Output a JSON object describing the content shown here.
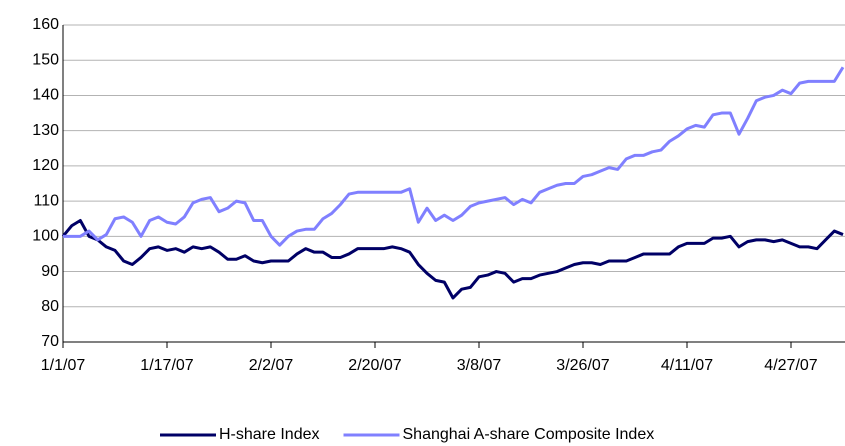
{
  "chart_data": {
    "type": "line",
    "categories": [
      "1/1/07",
      null,
      null,
      null,
      null,
      null,
      null,
      null,
      null,
      null,
      null,
      null,
      "1/17/07",
      null,
      null,
      null,
      null,
      null,
      null,
      null,
      null,
      null,
      null,
      null,
      "2/2/07",
      null,
      null,
      null,
      null,
      null,
      null,
      null,
      null,
      null,
      null,
      null,
      "2/20/07",
      null,
      null,
      null,
      null,
      null,
      null,
      null,
      null,
      null,
      null,
      null,
      "3/8/07",
      null,
      null,
      null,
      null,
      null,
      null,
      null,
      null,
      null,
      null,
      null,
      "3/26/07",
      null,
      null,
      null,
      null,
      null,
      null,
      null,
      null,
      null,
      null,
      null,
      "4/11/07",
      null,
      null,
      null,
      null,
      null,
      null,
      null,
      null,
      null,
      null,
      null,
      "4/27/07",
      null,
      null,
      null,
      null,
      null,
      null
    ],
    "series": [
      {
        "name": "H-share Index",
        "color": "#000066",
        "values": [
          100,
          103,
          104.5,
          100,
          99,
          97,
          96,
          93,
          92,
          94,
          96.5,
          97,
          96,
          96.5,
          95.5,
          97,
          96.5,
          97,
          95.5,
          93.5,
          93.5,
          94.5,
          93,
          92.5,
          93,
          93,
          93,
          95,
          96.5,
          95.5,
          95.5,
          94,
          94,
          95,
          96.5,
          96.5,
          96.5,
          96.5,
          97,
          96.5,
          95.5,
          92,
          89.5,
          87.5,
          87,
          82.5,
          85,
          85.5,
          88.5,
          89,
          90,
          89.5,
          87,
          88,
          88,
          89,
          89.5,
          90,
          91,
          92,
          92.5,
          92.5,
          92,
          93,
          93,
          93,
          94,
          95,
          95,
          95,
          95,
          97,
          98,
          98,
          98,
          99.5,
          99.5,
          100,
          97,
          98.5,
          99,
          99,
          98.5,
          99,
          98,
          97,
          97,
          96.5,
          99,
          101.5,
          100.5
        ]
      },
      {
        "name": "Shanghai A-share Composite Index",
        "color": "#8080ff",
        "values": [
          100,
          100,
          100,
          101.5,
          99,
          100.5,
          105,
          105.5,
          104,
          100,
          104.5,
          105.5,
          104,
          103.5,
          105.5,
          109.5,
          110.5,
          111,
          107,
          108,
          110,
          109.5,
          104.5,
          104.5,
          100,
          97.5,
          100,
          101.5,
          102,
          102,
          105,
          106.5,
          109,
          112,
          112.5,
          112.5,
          112.5,
          112.5,
          112.5,
          112.5,
          113.5,
          104,
          108,
          104.5,
          106,
          104.5,
          106,
          108.5,
          109.5,
          110,
          110.5,
          111,
          109,
          110.5,
          109.5,
          112.5,
          113.5,
          114.5,
          115,
          115,
          117,
          117.5,
          118.5,
          119.5,
          119,
          122,
          123,
          123,
          124,
          124.5,
          127,
          128.5,
          130.5,
          131.5,
          131,
          134.5,
          135,
          135,
          129,
          133.5,
          138.5,
          139.5,
          140,
          141.5,
          140.5,
          143.5,
          144,
          144,
          144,
          144,
          148
        ]
      }
    ],
    "ylim": [
      70,
      160
    ],
    "yticks": [
      70,
      80,
      90,
      100,
      110,
      120,
      130,
      140,
      150,
      160
    ],
    "grid": true,
    "legend": "bottom"
  }
}
